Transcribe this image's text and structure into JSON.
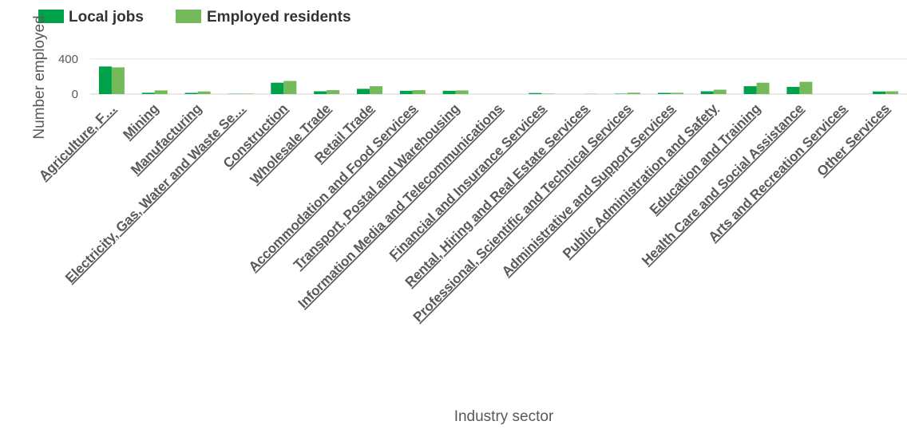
{
  "chart_data": {
    "type": "bar",
    "title": "",
    "xlabel": "Industry sector",
    "ylabel": "Number employed",
    "ylim": [
      0,
      520
    ],
    "yticks": [
      0,
      400
    ],
    "grid": true,
    "legend": "top-left",
    "categories": [
      "Agriculture, F…",
      "Mining",
      "Manufacturing",
      "Electricity, Gas, Water and Waste Se…",
      "Construction",
      "Wholesale Trade",
      "Retail Trade",
      "Accommodation and Food Services",
      "Transport, Postal and Warehousing",
      "Information Media and Telecommunications",
      "Financial and Insurance Services",
      "Rental, Hiring and Real Estate Services",
      "Professional, Scientific and Technical Services",
      "Administrative and Support Services",
      "Public Administration and Safety",
      "Education and Training",
      "Health Care and Social Assistance",
      "Arts and Recreation Services",
      "Other Services"
    ],
    "series": [
      {
        "name": "Local jobs",
        "color": "#00a14b",
        "values": [
          315,
          15,
          14,
          3,
          130,
          32,
          60,
          38,
          38,
          0,
          12,
          0,
          5,
          14,
          32,
          90,
          82,
          0,
          30
        ]
      },
      {
        "name": "Employed residents",
        "color": "#74b95a",
        "values": [
          305,
          42,
          30,
          5,
          150,
          45,
          90,
          45,
          42,
          0,
          5,
          3,
          16,
          15,
          50,
          130,
          140,
          0,
          32
        ]
      }
    ]
  }
}
